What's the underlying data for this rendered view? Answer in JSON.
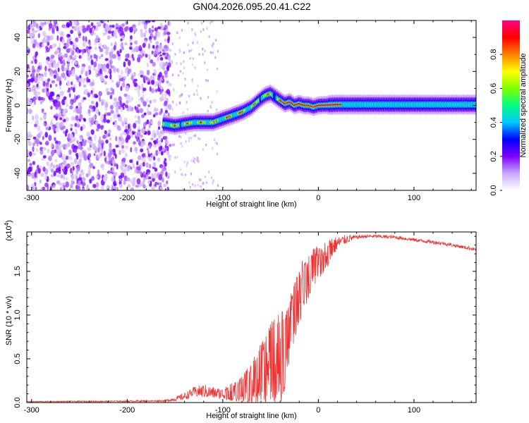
{
  "figure": {
    "title": "GN04.2026.095.20.41.C22"
  },
  "chart_data": [
    {
      "type": "heatmap",
      "xlabel": "Height of straight line (km)",
      "ylabel": "Frequency (Hz)",
      "xlim": [
        -305,
        165
      ],
      "ylim": [
        -50,
        50
      ],
      "xticks": [
        -300,
        -200,
        -100,
        0,
        100
      ],
      "yticks": [
        -40,
        -20,
        0,
        20,
        40
      ],
      "colorbar": {
        "label": "Normalized spectral amplitude",
        "range": [
          0,
          1
        ],
        "ticks": [
          "0.0",
          "0.2",
          "0.4",
          "0.6",
          "0.8"
        ],
        "colors": [
          "#ffffff",
          "#c8a8ff",
          "#7f00ff",
          "#0000ff",
          "#00c8ff",
          "#00ff80",
          "#80ff00",
          "#ffff00",
          "#ff8000",
          "#ff0000",
          "#ff0080"
        ]
      },
      "ridge": {
        "x": [
          -160,
          -150,
          -140,
          -130,
          -120,
          -110,
          -100,
          -90,
          -80,
          -70,
          -60,
          -55,
          -50,
          -45,
          -40,
          -35,
          -30,
          -25,
          -20,
          -15,
          -10,
          -5,
          0,
          20,
          50,
          100,
          165
        ],
        "y": [
          -11,
          -12,
          -11,
          -10,
          -10,
          -10,
          -8,
          -6,
          -4,
          -1,
          4,
          6,
          7,
          5,
          3,
          1,
          2,
          0,
          1,
          0,
          0,
          -1,
          0,
          0.5,
          0.5,
          0.5,
          0.5
        ]
      },
      "noise_region_x": [
        -305,
        -155
      ]
    },
    {
      "type": "line",
      "xlabel": "Height of straight line (km)",
      "ylabel": "SNR (10 * v/v)",
      "yscale_label": "(x10",
      "yscale_exponent": "4",
      "xlim": [
        -305,
        165
      ],
      "ylim": [
        0,
        1.95
      ],
      "xticks": [
        -300,
        -200,
        -100,
        0,
        100
      ],
      "yticks": [
        "0.0",
        "0.5",
        "1.0",
        "1.5"
      ],
      "line_color": "#ee3333",
      "envelope": {
        "x": [
          -305,
          -200,
          -160,
          -150,
          -140,
          -130,
          -120,
          -110,
          -100,
          -90,
          -80,
          -70,
          -60,
          -50,
          -40,
          -35,
          -30,
          -25,
          -20,
          -15,
          -10,
          -5,
          0,
          5,
          10,
          15,
          20,
          30,
          40,
          50,
          60,
          80,
          100,
          130,
          165
        ],
        "y": [
          0.01,
          0.015,
          0.02,
          0.04,
          0.07,
          0.12,
          0.13,
          0.11,
          0.1,
          0.12,
          0.15,
          0.2,
          0.35,
          0.45,
          0.5,
          0.6,
          0.85,
          1.05,
          1.25,
          1.35,
          1.45,
          1.55,
          1.6,
          1.65,
          1.7,
          1.78,
          1.82,
          1.87,
          1.89,
          1.9,
          1.9,
          1.89,
          1.86,
          1.82,
          1.75
        ]
      },
      "noise_amplitude": {
        "x": [
          -305,
          -160,
          -140,
          -120,
          -100,
          -80,
          -60,
          -50,
          -40,
          -30,
          -20,
          -10,
          0,
          10,
          20,
          40,
          165
        ],
        "y": [
          0.005,
          0.01,
          0.04,
          0.08,
          0.06,
          0.15,
          0.35,
          0.5,
          0.55,
          0.35,
          0.35,
          0.25,
          0.2,
          0.15,
          0.08,
          0.02,
          0.02
        ]
      }
    }
  ]
}
